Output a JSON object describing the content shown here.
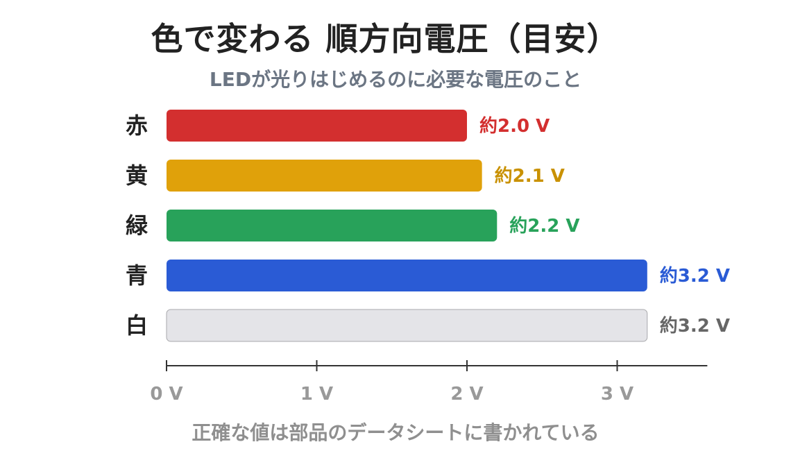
{
  "chart_data": {
    "type": "bar",
    "orientation": "horizontal",
    "title": "色で変わる 順方向電圧（目安）",
    "subtitle": "LEDが光りはじめるのに必要な電圧のこと",
    "footnote": "正確な値は部品のデータシートに書かれている",
    "categories": [
      "赤",
      "黄",
      "緑",
      "青",
      "白"
    ],
    "values": [
      2.0,
      2.1,
      2.2,
      3.2,
      3.2
    ],
    "value_labels": [
      "約2.0 V",
      "約2.1 V",
      "約2.2 V",
      "約3.2 V",
      "約3.2 V"
    ],
    "colors": [
      "#d32f2f",
      "#e0a10a",
      "#28a25a",
      "#2a5bd5",
      "#e4e4e8"
    ],
    "label_colors": [
      "#d32f2f",
      "#c99100",
      "#28a25a",
      "#2a5bd5",
      "#666666"
    ],
    "xticks": [
      0,
      1,
      2,
      3
    ],
    "xtick_labels": [
      "0 V",
      "1 V",
      "2 V",
      "3 V"
    ],
    "xlim": [
      0,
      3.6
    ],
    "grid": false
  }
}
